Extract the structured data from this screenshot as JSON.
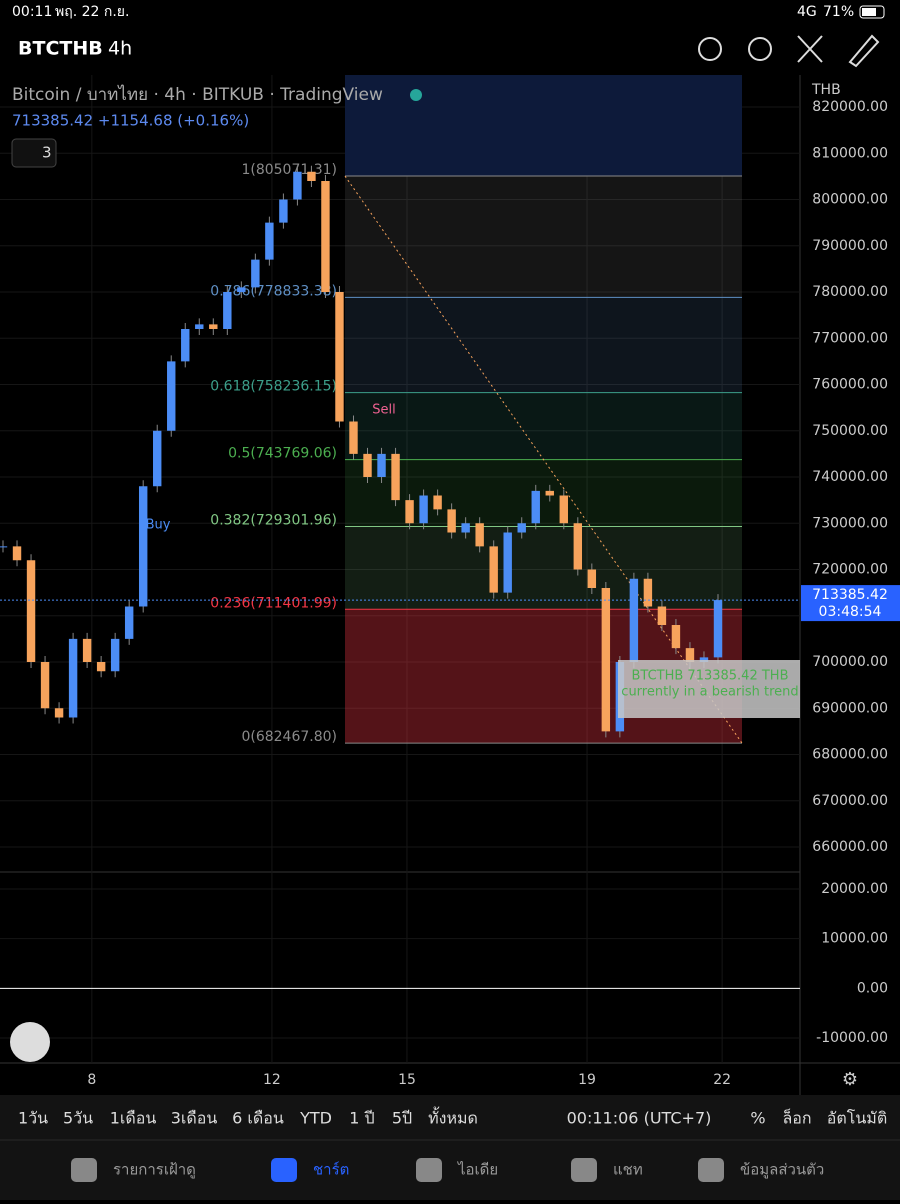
{
  "status_bar": {
    "time": "00:11",
    "date": "พฤ. 22 ก.ย.",
    "network": "4G",
    "battery": "71%"
  },
  "header": {
    "symbol": "BTCTHB",
    "interval": "4h"
  },
  "legend": {
    "title": "Bitcoin / บาทไทย · 4h · BITKUB · TradingView",
    "quote": "713385.42 +1154.68 (+0.16%)",
    "indicators_count": "3"
  },
  "chart_data": {
    "type": "candlestick",
    "currency": "THB",
    "closes": [
      725000,
      722000,
      700000,
      690000,
      688000,
      705000,
      700000,
      698000,
      705000,
      712000,
      738000,
      750000,
      765000,
      772000,
      773000,
      772000,
      780000,
      781000,
      787000,
      795000,
      800000,
      806000,
      804000,
      780000,
      752000,
      745000,
      740000,
      745000,
      735000,
      730000,
      736000,
      733000,
      728000,
      730000,
      725000,
      715000,
      728000,
      730000,
      737000,
      736000,
      730000,
      720000,
      716000,
      685000,
      700000,
      718000,
      712000,
      708000,
      703000,
      700000,
      701000,
      713385.42
    ],
    "up_color": "#4c8df6",
    "down_color": "#f7a35c",
    "ylim": [
      660000,
      820000
    ],
    "yticks": [
      {
        "value": 660000,
        "label": "660000.00"
      },
      {
        "value": 670000,
        "label": "670000.00"
      },
      {
        "value": 680000,
        "label": "680000.00"
      },
      {
        "value": 690000,
        "label": "690000.00"
      },
      {
        "value": 700000,
        "label": "700000.00"
      },
      {
        "value": 710000,
        "label": "710000.00"
      },
      {
        "value": 720000,
        "label": "720000.00"
      },
      {
        "value": 730000,
        "label": "730000.00"
      },
      {
        "value": 740000,
        "label": "740000.00"
      },
      {
        "value": 750000,
        "label": "750000.00"
      },
      {
        "value": 760000,
        "label": "760000.00"
      },
      {
        "value": 770000,
        "label": "770000.00"
      },
      {
        "value": 780000,
        "label": "780000.00"
      },
      {
        "value": 790000,
        "label": "790000.00"
      },
      {
        "value": 800000,
        "label": "800000.00"
      },
      {
        "value": 810000,
        "label": "810000.00"
      },
      {
        "value": 820000,
        "label": "820000.00"
      }
    ],
    "xlim": [
      5.96,
      23.73
    ],
    "xticks": [
      8,
      12,
      15,
      19,
      22
    ],
    "fib_levels": [
      {
        "value": 805071.31,
        "label": "1(805071.31)",
        "color": "#8a8a8a"
      },
      {
        "value": 778833.38,
        "label": "0.786(778833.38)",
        "color": "#5f8fc4"
      },
      {
        "value": 758236.15,
        "label": "0.618(758236.15)",
        "color": "#3c9f8a"
      },
      {
        "value": 743769.06,
        "label": "0.5(743769.06)",
        "color": "#4caf50"
      },
      {
        "value": 729301.96,
        "label": "0.382(729301.96)",
        "color": "#81c784"
      },
      {
        "value": 711401.99,
        "label": "0.236(711401.99)",
        "color": "#f23645"
      },
      {
        "value": 682467.8,
        "label": "0(682467.80)",
        "color": "#8a8a8a"
      }
    ],
    "last_price": {
      "value": 713385.42,
      "label": "713385.42",
      "countdown": "03:48:54"
    },
    "signals": {
      "buy": "Buy",
      "sell": "Sell"
    },
    "annotation": [
      "BTCTHB 713385.42 THB",
      "currently in a bearish trend"
    ],
    "macd_ylim": [
      -12000,
      22000
    ],
    "macd_yticks": [
      {
        "value": 20000,
        "label": "20000.00"
      },
      {
        "value": 10000,
        "label": "10000.00"
      },
      {
        "value": 0,
        "label": "0.00"
      },
      {
        "value": -10000,
        "label": "-10000.00"
      }
    ]
  },
  "toolbar": {
    "ranges": [
      "1วัน",
      "5วัน",
      "1เดือน",
      "3เดือน",
      "6 เดือน",
      "YTD",
      "1 ปี",
      "5ปี",
      "ทั้งหมด"
    ],
    "clock": "00:11:06 (UTC+7)",
    "percent": "%",
    "log": "ล็อก",
    "auto": "อัตโนมัติ"
  },
  "nav": [
    "รายการเฝ้าดู",
    "ชาร์ต",
    "ไอเดีย",
    "แชท",
    "ข้อมูลส่วนตัว"
  ]
}
